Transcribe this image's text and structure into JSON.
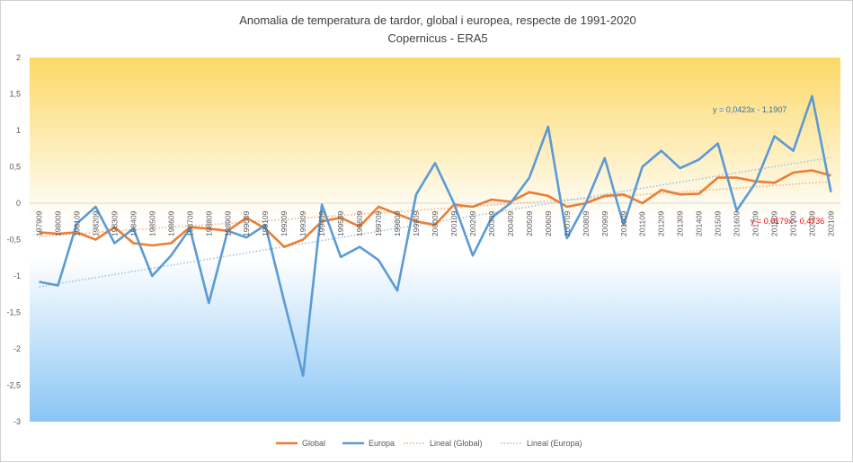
{
  "chart_data": {
    "type": "line",
    "title": "Anomalia de temperatura de tardor, global i europea, respecte de 1991-2020",
    "subtitle": "Copernicus - ERA5",
    "ylim": [
      -3,
      2
    ],
    "yticks": [
      "-3",
      "-2,5",
      "-2",
      "-1,5",
      "-1",
      "-0,5",
      "0",
      "0,5",
      "1",
      "1,5",
      "2"
    ],
    "ytick_values": [
      -3,
      -2.5,
      -2,
      -1.5,
      -1,
      -0.5,
      0,
      0.5,
      1,
      1.5,
      2
    ],
    "categories": [
      "197909",
      "198009",
      "198109",
      "198209",
      "198309",
      "198409",
      "198509",
      "198609",
      "198709",
      "198809",
      "198909",
      "199009",
      "199109",
      "199209",
      "199309",
      "199409",
      "199509",
      "199609",
      "199709",
      "199809",
      "199909",
      "200009",
      "200109",
      "200209",
      "200309",
      "200409",
      "200509",
      "200609",
      "200709",
      "200809",
      "200909",
      "201009",
      "201109",
      "201209",
      "201309",
      "201409",
      "201509",
      "201609",
      "201709",
      "201809",
      "201909",
      "202009",
      "202109"
    ],
    "xtick_labels": [
      "197909",
      "198009",
      "198109",
      "198209",
      "198309",
      "198409",
      "198509",
      "198609",
      "198709",
      "198809",
      "198909",
      "199009",
      "199109",
      "199209",
      "199309",
      "199409",
      "199509",
      "199609",
      "199709",
      "199809",
      "199909",
      "200009",
      "200109",
      "200209",
      "200309",
      "200409",
      "200509",
      "200609",
      "200709",
      "200809",
      "200909",
      "201009",
      "201109",
      "201209",
      "201309",
      "201409",
      "201509",
      "201609",
      "201709",
      "201809",
      "201909",
      "202009",
      "202109"
    ],
    "series": [
      {
        "name": "Global",
        "color": "#ed7d31",
        "values": [
          -0.4,
          -0.42,
          -0.4,
          -0.5,
          -0.33,
          -0.55,
          -0.58,
          -0.55,
          -0.33,
          -0.35,
          -0.38,
          -0.2,
          -0.35,
          -0.6,
          -0.5,
          -0.25,
          -0.2,
          -0.32,
          -0.05,
          -0.15,
          -0.25,
          -0.3,
          -0.02,
          -0.05,
          0.05,
          0.02,
          0.15,
          0.1,
          -0.05,
          0.0,
          0.1,
          0.12,
          0.0,
          0.18,
          0.12,
          0.13,
          0.35,
          0.35,
          0.3,
          0.28,
          0.42,
          0.45,
          0.38
        ]
      },
      {
        "name": "Europa",
        "color": "#5b9bd5",
        "values": [
          -1.08,
          -1.13,
          -0.28,
          -0.05,
          -0.55,
          -0.35,
          -1.0,
          -0.72,
          -0.35,
          -1.37,
          -0.38,
          -0.47,
          -0.3,
          -1.35,
          -2.37,
          -0.02,
          -0.74,
          -0.6,
          -0.78,
          -1.2,
          0.12,
          0.55,
          0.0,
          -0.72,
          -0.2,
          0.0,
          0.35,
          1.05,
          -0.48,
          0.0,
          0.62,
          -0.3,
          0.5,
          0.72,
          0.48,
          0.6,
          0.82,
          -0.1,
          0.28,
          0.92,
          0.72,
          1.47,
          0.15
        ]
      }
    ],
    "trendlines": [
      {
        "name": "Lineal  (Global)",
        "color": "#f4b183",
        "slope": 0.0179,
        "intercept": -0.4736,
        "label": "y = 0,0179x - 0,4736",
        "label_color": "#ff0000"
      },
      {
        "name": "Lineal  (Europa)",
        "color": "#9dc3e6",
        "slope": 0.0423,
        "intercept": -1.1907,
        "label": "y = 0,0423x - 1,1907",
        "label_color": "#2e75b6"
      }
    ],
    "legend_position": "bottom",
    "grid": false,
    "background": {
      "top_color": "#fcd866",
      "middle_color": "#ffffff",
      "bottom_color": "#8ac5f5"
    }
  }
}
